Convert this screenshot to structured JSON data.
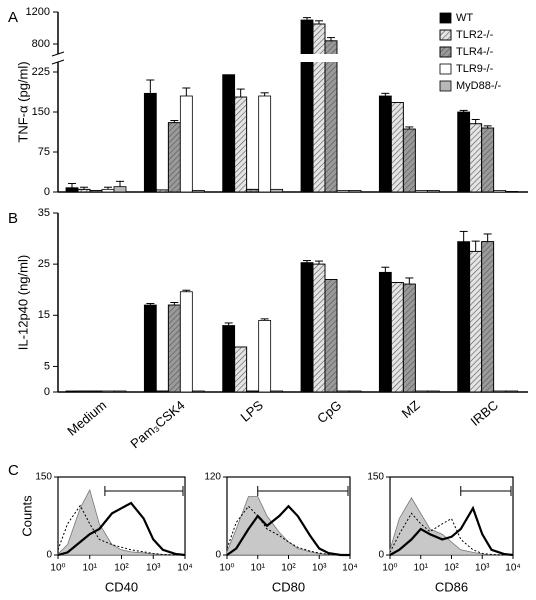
{
  "chart_data": [
    {
      "type": "bar",
      "panel_label": "A",
      "ylabel": "TNF-α (pg/ml)",
      "ylim": [
        0,
        1200
      ],
      "axis_break": [
        240,
        700
      ],
      "yticks": [
        0,
        75,
        150,
        225,
        800,
        1200
      ],
      "legend": "top-right",
      "series": [
        {
          "name": "WT",
          "color": "#000000",
          "values": [
            8,
            185,
            220,
            1100,
            180,
            150
          ],
          "errors": [
            8,
            25,
            28,
            30,
            5,
            3
          ]
        },
        {
          "name": "TLR2-/-",
          "color": "#e4e4e4",
          "hatch": true,
          "values": [
            5,
            4,
            178,
            1050,
            168,
            128
          ],
          "errors": [
            4,
            null,
            15,
            40,
            null,
            8
          ]
        },
        {
          "name": "TLR4-/-",
          "color": "#9a9a9a",
          "hatch": true,
          "values": [
            3,
            130,
            5,
            840,
            118,
            120
          ],
          "errors": [
            null,
            4,
            null,
            40,
            4,
            4
          ]
        },
        {
          "name": "TLR9-/-",
          "color": "#ffffff",
          "values": [
            5,
            180,
            180,
            3,
            3,
            3
          ],
          "errors": [
            4,
            15,
            6,
            null,
            null,
            null
          ]
        },
        {
          "name": "MyD88-/-",
          "color": "#b8b8b8",
          "values": [
            10,
            3,
            5,
            3,
            3,
            1
          ],
          "errors": [
            10,
            null,
            null,
            null,
            null,
            null
          ]
        }
      ]
    },
    {
      "type": "bar",
      "panel_label": "B",
      "ylabel": "IL-12p40 (ng/ml)",
      "categories": [
        "Medium",
        "Pam₃CSK4",
        "LPS",
        "CpG",
        "MZ",
        "IRBC"
      ],
      "ylim": [
        0,
        35
      ],
      "yticks": [
        0,
        5,
        15,
        25,
        35
      ],
      "series": [
        {
          "color": "#000000",
          "values": [
            0.2,
            17,
            13,
            25.3,
            23.4,
            29.4
          ],
          "errors": [
            null,
            0.3,
            0.5,
            0.4,
            1,
            2
          ]
        },
        {
          "color": "#e4e4e4",
          "hatch": true,
          "values": [
            0.2,
            0.2,
            8.8,
            25,
            21.4,
            27.5
          ],
          "errors": [
            null,
            null,
            null,
            0.6,
            null,
            2
          ]
        },
        {
          "color": "#9a9a9a",
          "hatch": true,
          "values": [
            0.2,
            17,
            0.2,
            22,
            21.1,
            29.4
          ],
          "errors": [
            null,
            0.5,
            null,
            null,
            1.2,
            1.5
          ]
        },
        {
          "color": "#ffffff",
          "values": [
            0.2,
            19.6,
            14,
            0.2,
            0.2,
            0.2
          ],
          "errors": [
            null,
            0.3,
            0.3,
            null,
            null,
            null
          ]
        },
        {
          "color": "#b8b8b8",
          "values": [
            0.2,
            0.2,
            0.2,
            0.2,
            0.2,
            0.2
          ],
          "errors": [
            null,
            null,
            null,
            null,
            null,
            null
          ]
        }
      ]
    },
    {
      "type": "histogram-overlay",
      "panel_label": "C",
      "ylabel": "Counts",
      "xlabel": "CD40",
      "xscale": "log",
      "x": [
        1,
        2,
        5,
        10,
        20,
        50,
        100,
        200,
        500,
        1000,
        2000,
        5000,
        10000
      ],
      "xlim": [
        1,
        10000
      ],
      "xticks": [
        {
          "value": 1,
          "label": "10⁰"
        },
        {
          "value": 10,
          "label": "10¹"
        },
        {
          "value": 100,
          "label": "10²"
        },
        {
          "value": 1000,
          "label": "10³"
        },
        {
          "value": 10000,
          "label": "10⁴"
        }
      ],
      "ylim": [
        0,
        150
      ],
      "yticks": [
        0,
        150
      ],
      "gate": [
        30,
        10000
      ],
      "series": [
        {
          "style": "filled",
          "color": "#c8c8c8",
          "values": [
            2,
            20,
            90,
            125,
            60,
            20,
            10,
            6,
            4,
            2,
            1,
            0,
            0
          ]
        },
        {
          "style": "dotted",
          "color": "#000000",
          "values": [
            10,
            60,
            95,
            60,
            30,
            20,
            15,
            10,
            6,
            3,
            1,
            0,
            0
          ]
        },
        {
          "style": "thick",
          "color": "#000000",
          "values": [
            0,
            5,
            25,
            40,
            50,
            80,
            90,
            100,
            70,
            30,
            10,
            2,
            0
          ]
        }
      ]
    },
    {
      "type": "histogram-overlay",
      "xlabel": "CD80",
      "xscale": "log",
      "x": [
        1,
        2,
        5,
        10,
        20,
        50,
        100,
        200,
        500,
        1000,
        2000,
        5000,
        10000
      ],
      "xlim": [
        1,
        10000
      ],
      "xticks": [
        {
          "value": 1,
          "label": "10⁰"
        },
        {
          "value": 10,
          "label": "10¹"
        },
        {
          "value": 100,
          "label": "10²"
        },
        {
          "value": 1000,
          "label": "10³"
        },
        {
          "value": 10000,
          "label": "10⁴"
        }
      ],
      "ylim": [
        0,
        120
      ],
      "yticks": [
        0,
        120
      ],
      "gate": [
        10,
        10000
      ],
      "series": [
        {
          "style": "filled",
          "color": "#c8c8c8",
          "values": [
            5,
            40,
            90,
            90,
            60,
            35,
            20,
            10,
            5,
            2,
            1,
            0,
            0
          ]
        },
        {
          "style": "dotted",
          "color": "#000000",
          "values": [
            10,
            50,
            75,
            60,
            40,
            30,
            20,
            12,
            6,
            3,
            1,
            0,
            0
          ]
        },
        {
          "style": "thick",
          "color": "#000000",
          "values": [
            0,
            10,
            40,
            60,
            45,
            60,
            75,
            60,
            30,
            10,
            3,
            0,
            0
          ]
        }
      ]
    },
    {
      "type": "histogram-overlay",
      "xlabel": "CD86",
      "xscale": "log",
      "x": [
        1,
        2,
        5,
        10,
        20,
        50,
        100,
        200,
        500,
        1000,
        2000,
        5000,
        10000
      ],
      "xlim": [
        1,
        10000
      ],
      "xticks": [
        {
          "value": 1,
          "label": "10⁰"
        },
        {
          "value": 10,
          "label": "10¹"
        },
        {
          "value": 100,
          "label": "10²"
        },
        {
          "value": 1000,
          "label": "10³"
        },
        {
          "value": 10000,
          "label": "10⁴"
        }
      ],
      "ylim": [
        0,
        150
      ],
      "yticks": [
        0,
        150
      ],
      "gate": [
        200,
        10000
      ],
      "series": [
        {
          "style": "filled",
          "color": "#c8c8c8",
          "values": [
            10,
            70,
            110,
            80,
            50,
            40,
            25,
            10,
            5,
            2,
            0,
            0,
            0
          ]
        },
        {
          "style": "dotted",
          "color": "#000000",
          "values": [
            5,
            40,
            80,
            60,
            45,
            60,
            70,
            30,
            10,
            3,
            1,
            0,
            0
          ]
        },
        {
          "style": "thick",
          "color": "#000000",
          "values": [
            0,
            10,
            30,
            50,
            40,
            30,
            35,
            50,
            90,
            40,
            10,
            2,
            0
          ]
        }
      ]
    }
  ]
}
